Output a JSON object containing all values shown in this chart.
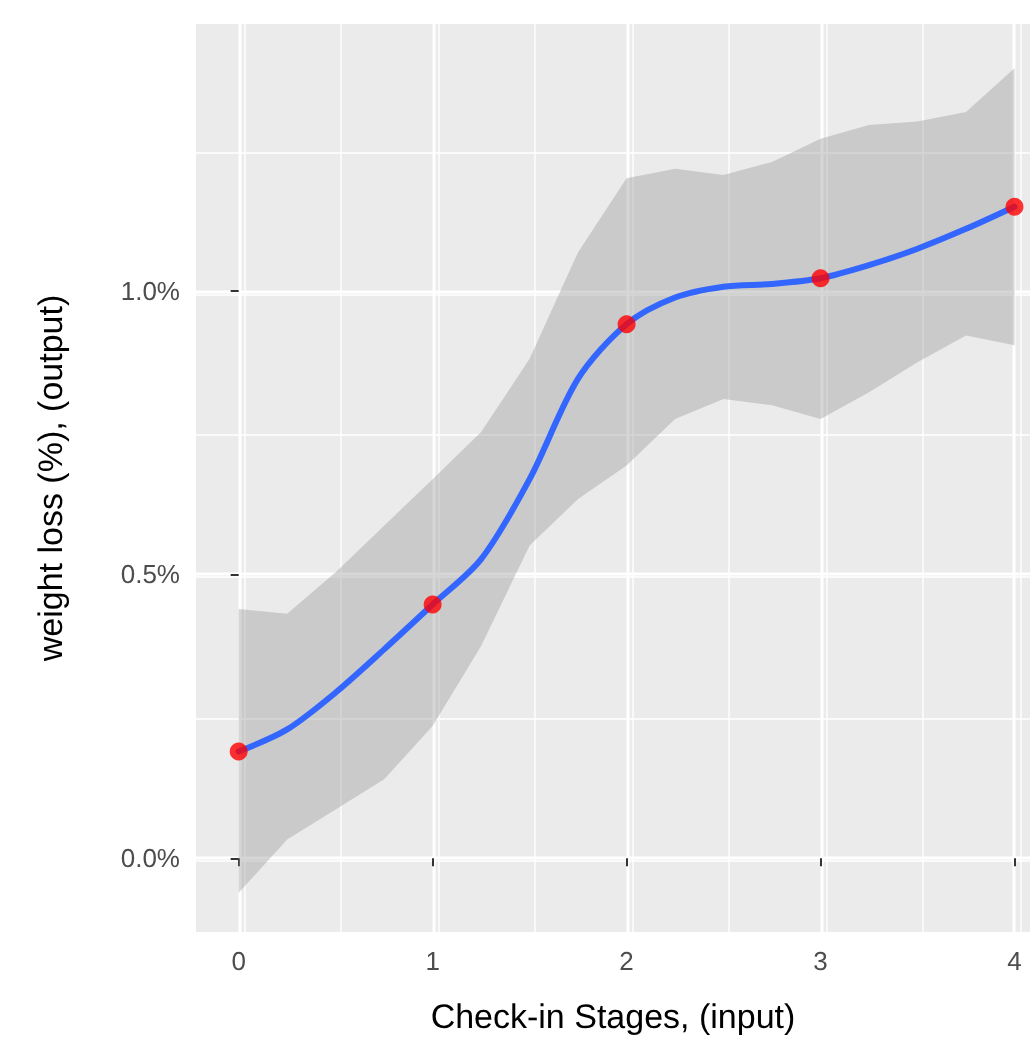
{
  "chart_data": {
    "type": "line",
    "xlabel": "Check-in Stages, (input)",
    "ylabel": "weight loss (%), (output)",
    "xlim": [
      -0.22,
      4.08
    ],
    "xticks": [
      0,
      1,
      2,
      3,
      4
    ],
    "ylim": [
      -0.13,
      1.47
    ],
    "yticks": [
      {
        "value": 0,
        "label": "0.0%"
      },
      {
        "value": 0.5,
        "label": "0.5%"
      },
      {
        "value": 1,
        "label": "1.0%"
      }
    ],
    "grid": true,
    "series": [
      {
        "color": "#3366ff",
        "marker": "none",
        "x": [
          0,
          0.25,
          0.5,
          0.75,
          1,
          1.25,
          1.5,
          1.75,
          2,
          2.25,
          2.5,
          2.75,
          3,
          3.25,
          3.5,
          3.75,
          4
        ],
        "values": [
          0.188,
          0.227,
          0.292,
          0.368,
          0.447,
          0.527,
          0.668,
          0.845,
          0.941,
          0.988,
          1.007,
          1.012,
          1.022,
          1.045,
          1.074,
          1.109,
          1.148
        ],
        "lower": [
          -0.061,
          0.033,
          0.086,
          0.139,
          0.233,
          0.374,
          0.551,
          0.633,
          0.692,
          0.774,
          0.809,
          0.798,
          0.774,
          0.821,
          0.874,
          0.921,
          0.904
        ],
        "upper": [
          0.439,
          0.431,
          0.504,
          0.586,
          0.668,
          0.751,
          0.88,
          1.068,
          1.198,
          1.215,
          1.204,
          1.227,
          1.268,
          1.292,
          1.298,
          1.315,
          1.392
        ]
      },
      {
        "type": "scatter",
        "color": "#ff0000",
        "marker": "circle",
        "x": [
          0,
          1,
          2,
          3,
          4
        ],
        "values": [
          0.188,
          0.447,
          0.941,
          1.022,
          1.148
        ]
      }
    ]
  }
}
